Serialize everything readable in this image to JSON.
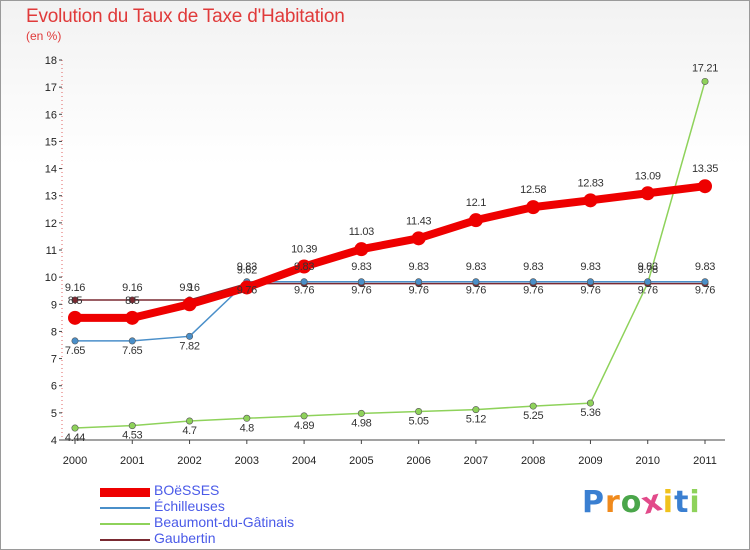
{
  "chart_data": {
    "type": "line",
    "title": "Evolution du Taux de Taxe d'Habitation",
    "subtitle": "(en %)",
    "xlabel": "",
    "ylabel": "",
    "x": [
      "2000",
      "2001",
      "2002",
      "2003",
      "2004",
      "2005",
      "2006",
      "2007",
      "2008",
      "2009",
      "2010",
      "2011"
    ],
    "ylim": [
      4,
      18
    ],
    "yticks": [
      "4",
      "5",
      "6",
      "7",
      "8",
      "9",
      "10",
      "11",
      "12",
      "13",
      "14",
      "15",
      "16",
      "17",
      "18"
    ],
    "grid": false,
    "legend_position": "bottom-left",
    "series": [
      {
        "name": "BOëSSES",
        "color": "#ee0000",
        "values": [
          8.5,
          8.5,
          9.0,
          9.62,
          10.39,
          11.03,
          11.43,
          12.1,
          12.58,
          12.83,
          13.09,
          13.35
        ],
        "labels": [
          "8.5",
          "8.5",
          "9",
          "9.62",
          "10.39",
          "11.03",
          "11.43",
          "12.1",
          "12.58",
          "12.83",
          "13.09",
          "13.35"
        ]
      },
      {
        "name": "Échilleuses",
        "color": "#4a8fc9",
        "values": [
          7.65,
          7.65,
          7.82,
          9.83,
          9.83,
          9.83,
          9.83,
          9.83,
          9.83,
          9.83,
          9.83,
          9.83
        ],
        "labels": [
          "7.65",
          "7.65",
          "7.82",
          "9.83",
          "9.83",
          "9.83",
          "9.83",
          "9.83",
          "9.83",
          "9.83",
          "9.83",
          "9.83"
        ]
      },
      {
        "name": "Beaumont-du-Gâtinais",
        "color": "#8ed25a",
        "values": [
          4.44,
          4.53,
          4.7,
          4.8,
          4.89,
          4.98,
          5.05,
          5.12,
          5.25,
          5.36,
          9.78,
          17.21
        ],
        "labels": [
          "4.44",
          "4.53",
          "4.7",
          "4.8",
          "4.89",
          "4.98",
          "5.05",
          "5.12",
          "5.25",
          "5.36",
          "9.78",
          "17.21"
        ]
      },
      {
        "name": "Gaubertin",
        "color": "#7a2a32",
        "values": [
          9.16,
          9.16,
          9.16,
          9.76,
          9.76,
          9.76,
          9.76,
          9.76,
          9.76,
          9.76,
          9.76,
          9.76
        ],
        "labels": [
          "9.16",
          "9.16",
          "9.16",
          "9.76",
          "9.76",
          "9.76",
          "9.76",
          "9.76",
          "9.76",
          "9.76",
          "9.76",
          "9.76"
        ]
      }
    ]
  },
  "brand": {
    "letters": [
      "P",
      "r",
      "o",
      "x",
      "i",
      "t",
      "i"
    ],
    "colors": [
      "#3a7fd1",
      "#f08a1c",
      "#4aa64a",
      "#e24a8a",
      "#f0c21c",
      "#3a7fd1",
      "#8ed25a"
    ]
  }
}
